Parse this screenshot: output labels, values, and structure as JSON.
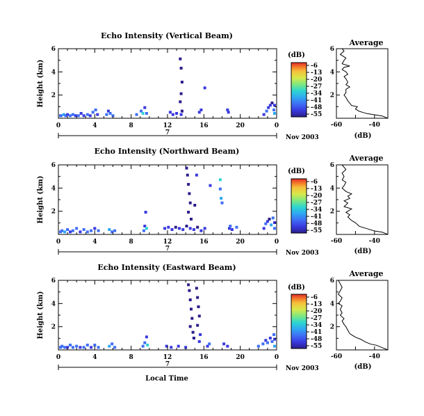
{
  "figure": {
    "shared_xlabel": "Local Time",
    "date_label": "Nov 2003",
    "day_label": "7",
    "colorbar_label": "(dB)",
    "colorbar_ticks": [
      "-6",
      "-13",
      "-20",
      "-27",
      "-34",
      "-41",
      "-48",
      "-55"
    ],
    "profile_title": "Average",
    "profile_xlabel": "(dB)"
  },
  "chart_data": [
    {
      "type": "heatmap",
      "title": "Echo Intensity (Vertical Beam)",
      "ylabel": "Height (km)",
      "xlabel": "",
      "x_ticks": [
        "0",
        "4",
        "8",
        "12",
        "16",
        "20",
        "0"
      ],
      "y_ticks": [
        "2",
        "4",
        "6"
      ],
      "xlim": [
        0,
        24
      ],
      "ylim": [
        0,
        6
      ],
      "color_range_db": [
        -55,
        -6
      ],
      "colormap": [
        "#2b1f8a",
        "#3a3ae0",
        "#3f6ff5",
        "#2fa8f2",
        "#2ed6d0",
        "#7fe87f",
        "#d8e84a",
        "#f5c03a",
        "#f57a2a",
        "#e02a2a"
      ],
      "cells": [
        [
          0.1,
          0.1,
          -44
        ],
        [
          0.3,
          0.1,
          -41
        ],
        [
          0.6,
          0.2,
          -38
        ],
        [
          0.8,
          0.1,
          -44
        ],
        [
          1.0,
          0.2,
          -48
        ],
        [
          1.3,
          0.1,
          -41
        ],
        [
          1.6,
          0.2,
          -44
        ],
        [
          1.9,
          0.1,
          -48
        ],
        [
          2.2,
          0.1,
          -44
        ],
        [
          2.5,
          0.3,
          -50
        ],
        [
          2.8,
          0.1,
          -48
        ],
        [
          3.2,
          0.2,
          -44
        ],
        [
          3.5,
          0.1,
          -48
        ],
        [
          3.8,
          0.4,
          -41
        ],
        [
          4.1,
          0.6,
          -44
        ],
        [
          4.3,
          0.2,
          -48
        ],
        [
          5.3,
          0.2,
          -41
        ],
        [
          5.5,
          0.5,
          -48
        ],
        [
          5.7,
          0.3,
          -41
        ],
        [
          6.0,
          0.1,
          -44
        ],
        [
          8.6,
          0.2,
          -41
        ],
        [
          9.1,
          0.5,
          -44
        ],
        [
          9.3,
          0.3,
          -34
        ],
        [
          9.5,
          0.8,
          -48
        ],
        [
          9.7,
          0.3,
          -44
        ],
        [
          12.3,
          0.4,
          -48
        ],
        [
          12.6,
          0.2,
          -48
        ],
        [
          13.0,
          0.3,
          -48
        ],
        [
          13.4,
          5.0,
          -52
        ],
        [
          13.5,
          4.2,
          -52
        ],
        [
          13.6,
          3.0,
          -52
        ],
        [
          13.5,
          2.0,
          -52
        ],
        [
          13.4,
          1.3,
          -52
        ],
        [
          13.6,
          0.5,
          -52
        ],
        [
          13.5,
          0.2,
          -48
        ],
        [
          15.5,
          0.4,
          -48
        ],
        [
          15.7,
          0.6,
          -48
        ],
        [
          16.1,
          2.5,
          -48
        ],
        [
          18.6,
          0.6,
          -48
        ],
        [
          18.7,
          0.4,
          -48
        ],
        [
          22.6,
          0.2,
          -48
        ],
        [
          22.9,
          0.5,
          -45
        ],
        [
          23.1,
          0.8,
          -48
        ],
        [
          23.3,
          1.0,
          -50
        ],
        [
          23.5,
          1.2,
          -52
        ],
        [
          23.7,
          0.6,
          -45
        ],
        [
          23.9,
          1.0,
          -50
        ],
        [
          23.8,
          0.3,
          -40
        ]
      ],
      "profile": {
        "xlim": [
          -60,
          -33
        ],
        "x_ticks": [
          "-60",
          "-40"
        ],
        "y_ticks": [
          "2",
          "4",
          "6"
        ],
        "ylim": [
          0,
          6
        ],
        "points": [
          [
            -33,
            0.0
          ],
          [
            -36,
            0.2
          ],
          [
            -40,
            0.3
          ],
          [
            -44,
            0.4
          ],
          [
            -46,
            0.5
          ],
          [
            -48,
            0.6
          ],
          [
            -50,
            0.8
          ],
          [
            -49,
            1.0
          ],
          [
            -52,
            1.1
          ],
          [
            -53,
            1.3
          ],
          [
            -54,
            1.5
          ],
          [
            -55,
            1.8
          ],
          [
            -56,
            2.0
          ],
          [
            -55,
            2.2
          ],
          [
            -55,
            2.5
          ],
          [
            -53,
            2.7
          ],
          [
            -55,
            2.9
          ],
          [
            -54,
            3.1
          ],
          [
            -55,
            3.4
          ],
          [
            -56,
            3.6
          ],
          [
            -54,
            3.8
          ],
          [
            -55,
            4.0
          ],
          [
            -57,
            4.2
          ],
          [
            -56,
            4.4
          ],
          [
            -53,
            4.5
          ],
          [
            -57,
            4.7
          ],
          [
            -56,
            5.0
          ],
          [
            -55,
            5.2
          ],
          [
            -58,
            5.5
          ],
          [
            -56,
            5.8
          ],
          [
            -57,
            6.0
          ]
        ]
      }
    },
    {
      "type": "heatmap",
      "title": "Echo Intensity (Northward Beam)",
      "ylabel": "Height (km)",
      "xlabel": "",
      "x_ticks": [
        "0",
        "4",
        "8",
        "12",
        "16",
        "20",
        "0"
      ],
      "y_ticks": [
        "2",
        "4",
        "6"
      ],
      "xlim": [
        0,
        24
      ],
      "ylim": [
        0,
        6
      ],
      "color_range_db": [
        -55,
        -6
      ],
      "colormap": [
        "#2b1f8a",
        "#3a3ae0",
        "#3f6ff5",
        "#2fa8f2",
        "#2ed6d0",
        "#7fe87f",
        "#d8e84a",
        "#f5c03a",
        "#f57a2a",
        "#e02a2a"
      ],
      "cells": [
        [
          0.1,
          0.1,
          -41
        ],
        [
          0.4,
          0.2,
          -44
        ],
        [
          0.7,
          0.1,
          -38
        ],
        [
          1.0,
          0.3,
          -44
        ],
        [
          1.3,
          0.1,
          -48
        ],
        [
          1.6,
          0.2,
          -41
        ],
        [
          2.0,
          0.4,
          -44
        ],
        [
          2.4,
          0.1,
          -48
        ],
        [
          2.8,
          0.3,
          -44
        ],
        [
          3.2,
          0.1,
          -41
        ],
        [
          3.6,
          0.2,
          -44
        ],
        [
          4.0,
          0.4,
          -48
        ],
        [
          4.4,
          0.2,
          -44
        ],
        [
          5.6,
          0.3,
          -38
        ],
        [
          5.9,
          0.1,
          -41
        ],
        [
          6.2,
          0.2,
          -44
        ],
        [
          9.4,
          0.2,
          -41
        ],
        [
          9.5,
          0.6,
          -48
        ],
        [
          9.6,
          1.8,
          -48
        ],
        [
          9.7,
          0.4,
          -34
        ],
        [
          11.7,
          0.4,
          -50
        ],
        [
          12.1,
          0.5,
          -50
        ],
        [
          12.5,
          0.3,
          -50
        ],
        [
          12.9,
          0.5,
          -52
        ],
        [
          13.3,
          0.4,
          -50
        ],
        [
          13.7,
          0.3,
          -50
        ],
        [
          14.1,
          0.6,
          -52
        ],
        [
          14.5,
          0.4,
          -50
        ],
        [
          14.9,
          0.3,
          -50
        ],
        [
          15.3,
          0.5,
          -52
        ],
        [
          15.7,
          0.2,
          -48
        ],
        [
          16.1,
          0.4,
          -50
        ],
        [
          14.1,
          5.6,
          -52
        ],
        [
          14.2,
          5.0,
          -52
        ],
        [
          14.3,
          4.2,
          -52
        ],
        [
          14.4,
          3.4,
          -52
        ],
        [
          14.5,
          2.6,
          -52
        ],
        [
          14.3,
          1.8,
          -52
        ],
        [
          14.6,
          1.2,
          -52
        ],
        [
          15.0,
          2.4,
          -52
        ],
        [
          15.2,
          5.0,
          -48
        ],
        [
          16.7,
          4.1,
          -48
        ],
        [
          17.8,
          4.6,
          -34
        ],
        [
          17.8,
          3.8,
          -41
        ],
        [
          17.9,
          3.0,
          -38
        ],
        [
          18.0,
          2.6,
          -41
        ],
        [
          18.8,
          0.4,
          -48
        ],
        [
          18.9,
          0.6,
          -44
        ],
        [
          19.1,
          0.3,
          -50
        ],
        [
          19.6,
          0.5,
          -45
        ],
        [
          22.6,
          0.4,
          -48
        ],
        [
          22.8,
          0.8,
          -45
        ],
        [
          23.0,
          1.0,
          -50
        ],
        [
          23.2,
          1.2,
          -52
        ],
        [
          23.4,
          0.7,
          -40
        ],
        [
          23.6,
          1.3,
          -45
        ],
        [
          23.8,
          0.9,
          -48
        ],
        [
          23.9,
          0.4,
          -41
        ]
      ],
      "profile": {
        "xlim": [
          -60,
          -33
        ],
        "x_ticks": [
          "-60",
          "-40"
        ],
        "y_ticks": [
          "2",
          "4",
          "6"
        ],
        "ylim": [
          0,
          6
        ],
        "points": [
          [
            -33,
            0.0
          ],
          [
            -36,
            0.2
          ],
          [
            -40,
            0.3
          ],
          [
            -44,
            0.5
          ],
          [
            -48,
            0.7
          ],
          [
            -50,
            1.0
          ],
          [
            -52,
            1.2
          ],
          [
            -54,
            1.5
          ],
          [
            -53,
            1.7
          ],
          [
            -55,
            1.9
          ],
          [
            -52,
            2.2
          ],
          [
            -56,
            2.4
          ],
          [
            -54,
            2.7
          ],
          [
            -56,
            2.9
          ],
          [
            -53,
            3.1
          ],
          [
            -54,
            3.3
          ],
          [
            -52,
            3.5
          ],
          [
            -55,
            3.7
          ],
          [
            -57,
            4.0
          ],
          [
            -56,
            4.2
          ],
          [
            -55,
            4.5
          ],
          [
            -57,
            4.7
          ],
          [
            -56,
            5.0
          ],
          [
            -57,
            5.3
          ],
          [
            -55,
            5.6
          ],
          [
            -57,
            6.0
          ]
        ]
      }
    },
    {
      "type": "heatmap",
      "title": "Echo Intensity (Eastward Beam)",
      "ylabel": "Height (km)",
      "xlabel": "Local Time",
      "x_ticks": [
        "0",
        "4",
        "8",
        "12",
        "16",
        "20",
        "0"
      ],
      "y_ticks": [
        "2",
        "4",
        "6"
      ],
      "xlim": [
        0,
        24
      ],
      "ylim": [
        0,
        6
      ],
      "color_range_db": [
        -55,
        -6
      ],
      "colormap": [
        "#2b1f8a",
        "#3a3ae0",
        "#3f6ff5",
        "#2fa8f2",
        "#2ed6d0",
        "#7fe87f",
        "#d8e84a",
        "#f5c03a",
        "#f57a2a",
        "#e02a2a"
      ],
      "cells": [
        [
          0.1,
          0.1,
          -44
        ],
        [
          0.4,
          0.2,
          -41
        ],
        [
          0.7,
          0.1,
          -44
        ],
        [
          1.0,
          0.1,
          -48
        ],
        [
          1.3,
          0.3,
          -44
        ],
        [
          1.6,
          0.1,
          -41
        ],
        [
          2.0,
          0.2,
          -44
        ],
        [
          2.4,
          0.1,
          -48
        ],
        [
          2.8,
          0.1,
          -44
        ],
        [
          3.2,
          0.3,
          -41
        ],
        [
          3.6,
          0.1,
          -48
        ],
        [
          4.0,
          0.3,
          -44
        ],
        [
          4.4,
          0.1,
          -44
        ],
        [
          5.6,
          0.2,
          -38
        ],
        [
          5.9,
          0.4,
          -41
        ],
        [
          6.2,
          0.1,
          -44
        ],
        [
          9.3,
          0.2,
          -41
        ],
        [
          9.5,
          0.5,
          -44
        ],
        [
          9.7,
          1.0,
          -48
        ],
        [
          9.8,
          0.3,
          -34
        ],
        [
          11.9,
          0.2,
          -48
        ],
        [
          12.4,
          0.1,
          -48
        ],
        [
          13.2,
          0.2,
          -48
        ],
        [
          14.0,
          0.1,
          -48
        ],
        [
          14.3,
          5.5,
          -52
        ],
        [
          14.4,
          5.0,
          -52
        ],
        [
          14.5,
          4.2,
          -52
        ],
        [
          14.6,
          3.4,
          -52
        ],
        [
          14.7,
          2.6,
          -52
        ],
        [
          14.5,
          1.9,
          -52
        ],
        [
          14.8,
          1.4,
          -52
        ],
        [
          14.9,
          0.9,
          -52
        ],
        [
          15.2,
          5.2,
          -52
        ],
        [
          15.3,
          4.4,
          -52
        ],
        [
          15.4,
          3.6,
          -52
        ],
        [
          15.5,
          2.8,
          -52
        ],
        [
          15.3,
          2.0,
          -52
        ],
        [
          15.6,
          1.2,
          -50
        ],
        [
          15.5,
          0.6,
          -48
        ],
        [
          16.4,
          0.2,
          -48
        ],
        [
          16.6,
          0.4,
          -45
        ],
        [
          18.2,
          0.4,
          -48
        ],
        [
          18.6,
          0.2,
          -48
        ],
        [
          22.0,
          0.2,
          -44
        ],
        [
          22.5,
          0.4,
          -45
        ],
        [
          22.8,
          0.7,
          -48
        ],
        [
          23.0,
          0.5,
          -45
        ],
        [
          23.3,
          0.9,
          -50
        ],
        [
          23.5,
          0.6,
          -41
        ],
        [
          23.7,
          1.2,
          -45
        ],
        [
          23.9,
          0.8,
          -48
        ],
        [
          23.8,
          0.2,
          -40
        ]
      ],
      "profile": {
        "xlim": [
          -60,
          -33
        ],
        "x_ticks": [
          "-60",
          "-40"
        ],
        "y_ticks": [
          "2",
          "4",
          "6"
        ],
        "ylim": [
          0,
          6
        ],
        "points": [
          [
            -33,
            0.0
          ],
          [
            -36,
            0.2
          ],
          [
            -39,
            0.4
          ],
          [
            -42,
            0.5
          ],
          [
            -45,
            0.7
          ],
          [
            -47,
            0.9
          ],
          [
            -50,
            1.1
          ],
          [
            -53,
            1.4
          ],
          [
            -54,
            1.7
          ],
          [
            -55,
            2.0
          ],
          [
            -56,
            2.2
          ],
          [
            -57,
            2.5
          ],
          [
            -56,
            2.7
          ],
          [
            -58,
            3.0
          ],
          [
            -57,
            3.2
          ],
          [
            -58,
            3.5
          ],
          [
            -57,
            3.8
          ],
          [
            -59,
            4.0
          ],
          [
            -58,
            4.2
          ],
          [
            -57,
            4.5
          ],
          [
            -59,
            4.8
          ],
          [
            -58,
            5.1
          ],
          [
            -57,
            5.4
          ],
          [
            -58,
            5.7
          ],
          [
            -59,
            6.0
          ]
        ]
      }
    }
  ]
}
